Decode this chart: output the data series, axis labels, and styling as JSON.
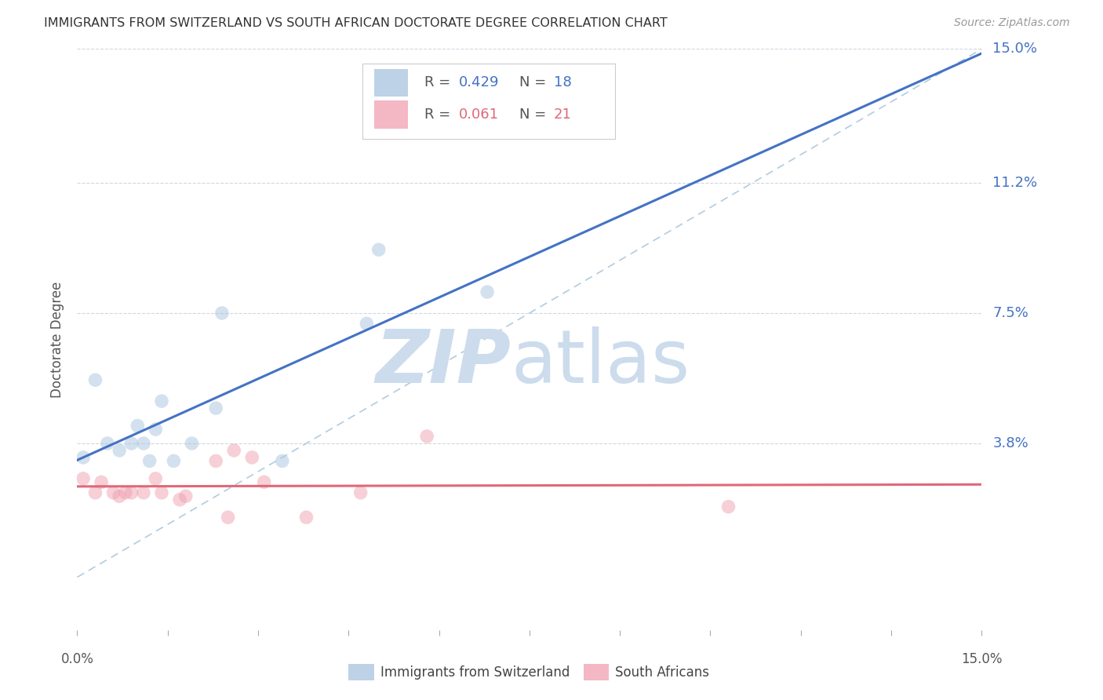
{
  "title": "IMMIGRANTS FROM SWITZERLAND VS SOUTH AFRICAN DOCTORATE DEGREE CORRELATION CHART",
  "source": "Source: ZipAtlas.com",
  "ylabel": "Doctorate Degree",
  "xlim": [
    0.0,
    0.15
  ],
  "ylim": [
    -0.015,
    0.15
  ],
  "ytick_labels_right": [
    "15.0%",
    "11.2%",
    "7.5%",
    "3.8%"
  ],
  "ytick_values_right": [
    0.15,
    0.112,
    0.075,
    0.038
  ],
  "blue_R": "0.429",
  "blue_N": "18",
  "pink_R": "0.061",
  "pink_N": "21",
  "blue_scatter_color": "#a8c4e0",
  "blue_line_color": "#4472c4",
  "pink_scatter_color": "#f0a0b0",
  "pink_line_color": "#e06878",
  "blue_label_color": "#4472c4",
  "pink_label_color": "#e06878",
  "title_color": "#333333",
  "source_color": "#999999",
  "grid_color": "#d0d8e0",
  "watermark_color": "#ccdcec",
  "blue_points_x": [
    0.001,
    0.003,
    0.005,
    0.007,
    0.009,
    0.01,
    0.011,
    0.012,
    0.013,
    0.014,
    0.016,
    0.019,
    0.023,
    0.024,
    0.034,
    0.048,
    0.05,
    0.068
  ],
  "blue_points_y": [
    0.034,
    0.056,
    0.038,
    0.036,
    0.038,
    0.043,
    0.038,
    0.033,
    0.042,
    0.05,
    0.033,
    0.038,
    0.048,
    0.075,
    0.033,
    0.072,
    0.093,
    0.081
  ],
  "pink_points_x": [
    0.001,
    0.003,
    0.004,
    0.006,
    0.007,
    0.008,
    0.009,
    0.011,
    0.013,
    0.014,
    0.017,
    0.018,
    0.023,
    0.025,
    0.026,
    0.029,
    0.031,
    0.038,
    0.047,
    0.058,
    0.108
  ],
  "pink_points_y": [
    0.028,
    0.024,
    0.027,
    0.024,
    0.023,
    0.024,
    0.024,
    0.024,
    0.028,
    0.024,
    0.022,
    0.023,
    0.033,
    0.017,
    0.036,
    0.034,
    0.027,
    0.017,
    0.024,
    0.04,
    0.02
  ],
  "marker_size": 160,
  "marker_alpha": 0.5,
  "line_width": 2.2,
  "bottom_legend_labels": [
    "Immigrants from Switzerland",
    "South Africans"
  ]
}
